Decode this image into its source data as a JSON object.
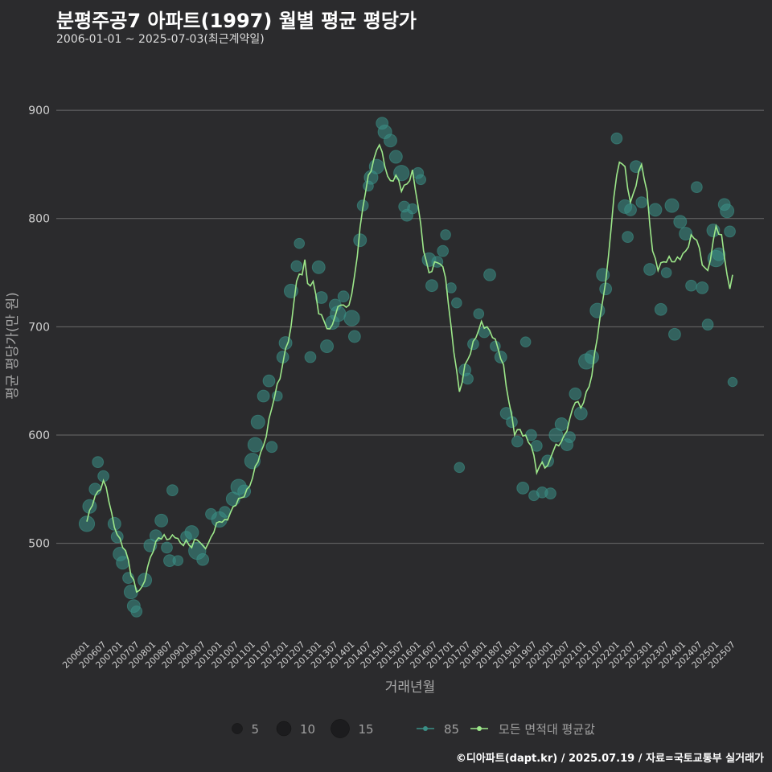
{
  "header": {
    "title": "분평주공7 아파트(1997) 월별 평균 평당가",
    "subtitle": "2006-01-01 ~ 2025-07-03(최근계약일)"
  },
  "footer": {
    "credit": "©디아파트(dapt.kr) / 2025.07.19 / 자료=국토교통부 실거래가"
  },
  "colors": {
    "background": "#2b2b2d",
    "grid": "#6b6b6b",
    "bubble": "#3a8f86",
    "line": "#9de88a",
    "legend_size_bubble": "#1c1c1e"
  },
  "chart_data": {
    "type": "line",
    "title": "분평주공7 아파트(1997) 월별 평균 평당가",
    "xlabel": "거래년월",
    "ylabel": "평균 평당가(만 원)",
    "ylim": [
      415,
      935
    ],
    "yticks": [
      500,
      600,
      700,
      800,
      900
    ],
    "grid": true,
    "x_start": "2006-01",
    "x_end": "2025-07",
    "xtick_labels": [
      "200601",
      "200607",
      "200701",
      "200707",
      "200801",
      "200807",
      "200901",
      "200907",
      "201001",
      "201007",
      "201101",
      "201107",
      "201201",
      "201207",
      "201301",
      "201307",
      "201401",
      "201407",
      "201501",
      "201507",
      "201601",
      "201607",
      "201701",
      "201707",
      "201801",
      "201807",
      "201901",
      "201907",
      "202001",
      "202007",
      "202101",
      "202107",
      "202201",
      "202207",
      "202301",
      "202307",
      "202401",
      "202407",
      "202501",
      "202507"
    ],
    "legend": {
      "size_title": "",
      "sizes": [
        5,
        10,
        15
      ],
      "series_labels": [
        "85",
        "모든 면적대 평균값"
      ]
    },
    "series": [
      {
        "name": "모든 면적대 평균값",
        "type": "line",
        "anchors": [
          [
            "2006-01",
            520
          ],
          [
            "2006-03",
            535
          ],
          [
            "2006-05",
            548
          ],
          [
            "2006-07",
            558
          ],
          [
            "2006-08",
            552
          ],
          [
            "2006-10",
            528
          ],
          [
            "2006-12",
            508
          ],
          [
            "2007-02",
            496
          ],
          [
            "2007-04",
            485
          ],
          [
            "2007-05",
            470
          ],
          [
            "2007-07",
            455
          ],
          [
            "2007-09",
            460
          ],
          [
            "2007-11",
            478
          ],
          [
            "2008-01",
            492
          ],
          [
            "2008-03",
            505
          ],
          [
            "2008-05",
            508
          ],
          [
            "2008-07",
            504
          ],
          [
            "2008-09",
            505
          ],
          [
            "2008-11",
            500
          ],
          [
            "2009-01",
            503
          ],
          [
            "2009-03",
            496
          ],
          [
            "2009-05",
            503
          ],
          [
            "2009-07",
            498
          ],
          [
            "2009-09",
            500
          ],
          [
            "2009-11",
            510
          ],
          [
            "2010-01",
            520
          ],
          [
            "2010-03",
            522
          ],
          [
            "2010-05",
            528
          ],
          [
            "2010-07",
            535
          ],
          [
            "2010-09",
            542
          ],
          [
            "2010-11",
            550
          ],
          [
            "2011-01",
            560
          ],
          [
            "2011-03",
            575
          ],
          [
            "2011-05",
            590
          ],
          [
            "2011-07",
            615
          ],
          [
            "2011-09",
            635
          ],
          [
            "2011-11",
            652
          ],
          [
            "2012-01",
            680
          ],
          [
            "2012-03",
            700
          ],
          [
            "2012-05",
            742
          ],
          [
            "2012-07",
            748
          ],
          [
            "2012-08",
            762
          ],
          [
            "2012-09",
            740
          ],
          [
            "2012-11",
            742
          ],
          [
            "2013-01",
            712
          ],
          [
            "2013-03",
            705
          ],
          [
            "2013-05",
            698
          ],
          [
            "2013-07",
            710
          ],
          [
            "2013-09",
            720
          ],
          [
            "2013-11",
            718
          ],
          [
            "2014-01",
            730
          ],
          [
            "2014-03",
            765
          ],
          [
            "2014-05",
            810
          ],
          [
            "2014-07",
            840
          ],
          [
            "2014-09",
            855
          ],
          [
            "2014-11",
            868
          ],
          [
            "2015-01",
            848
          ],
          [
            "2015-03",
            835
          ],
          [
            "2015-05",
            840
          ],
          [
            "2015-07",
            825
          ],
          [
            "2015-09",
            832
          ],
          [
            "2015-11",
            845
          ],
          [
            "2016-01",
            812
          ],
          [
            "2016-03",
            770
          ],
          [
            "2016-05",
            750
          ],
          [
            "2016-07",
            760
          ],
          [
            "2016-09",
            758
          ],
          [
            "2016-11",
            745
          ],
          [
            "2017-01",
            700
          ],
          [
            "2017-03",
            660
          ],
          [
            "2017-04",
            640
          ],
          [
            "2017-06",
            665
          ],
          [
            "2017-08",
            675
          ],
          [
            "2017-10",
            690
          ],
          [
            "2017-12",
            705
          ],
          [
            "2018-02",
            700
          ],
          [
            "2018-04",
            690
          ],
          [
            "2018-06",
            680
          ],
          [
            "2018-08",
            665
          ],
          [
            "2018-10",
            630
          ],
          [
            "2018-12",
            600
          ],
          [
            "2019-02",
            605
          ],
          [
            "2019-04",
            600
          ],
          [
            "2019-06",
            590
          ],
          [
            "2019-08",
            565
          ],
          [
            "2019-10",
            575
          ],
          [
            "2019-12",
            572
          ],
          [
            "2020-02",
            585
          ],
          [
            "2020-04",
            590
          ],
          [
            "2020-06",
            600
          ],
          [
            "2020-08",
            615
          ],
          [
            "2020-10",
            630
          ],
          [
            "2020-12",
            625
          ],
          [
            "2021-02",
            640
          ],
          [
            "2021-04",
            655
          ],
          [
            "2021-06",
            690
          ],
          [
            "2021-08",
            725
          ],
          [
            "2021-10",
            765
          ],
          [
            "2021-12",
            820
          ],
          [
            "2022-02",
            852
          ],
          [
            "2022-04",
            848
          ],
          [
            "2022-06",
            815
          ],
          [
            "2022-08",
            830
          ],
          [
            "2022-10",
            850
          ],
          [
            "2022-12",
            825
          ],
          [
            "2023-02",
            770
          ],
          [
            "2023-04",
            752
          ],
          [
            "2023-06",
            760
          ],
          [
            "2023-08",
            765
          ],
          [
            "2023-10",
            760
          ],
          [
            "2023-12",
            762
          ],
          [
            "2024-02",
            770
          ],
          [
            "2024-04",
            785
          ],
          [
            "2024-06",
            780
          ],
          [
            "2024-08",
            757
          ],
          [
            "2024-10",
            752
          ],
          [
            "2024-12",
            780
          ],
          [
            "2025-01",
            793
          ],
          [
            "2025-03",
            785
          ],
          [
            "2025-04",
            765
          ],
          [
            "2025-06",
            735
          ],
          [
            "2025-07",
            748
          ]
        ]
      },
      {
        "name": "85",
        "type": "scatter",
        "points": [
          [
            "2006-01",
            518,
            12
          ],
          [
            "2006-02",
            534,
            10
          ],
          [
            "2006-04",
            550,
            8
          ],
          [
            "2006-05",
            575,
            7
          ],
          [
            "2006-07",
            562,
            7
          ],
          [
            "2006-11",
            518,
            9
          ],
          [
            "2006-12",
            506,
            8
          ],
          [
            "2007-01",
            490,
            10
          ],
          [
            "2007-02",
            482,
            9
          ],
          [
            "2007-04",
            468,
            7
          ],
          [
            "2007-05",
            455,
            10
          ],
          [
            "2007-06",
            442,
            9
          ],
          [
            "2007-07",
            437,
            7
          ],
          [
            "2007-10",
            466,
            10
          ],
          [
            "2007-12",
            498,
            9
          ],
          [
            "2008-02",
            507,
            8
          ],
          [
            "2008-04",
            521,
            9
          ],
          [
            "2008-06",
            496,
            7
          ],
          [
            "2008-07",
            484,
            8
          ],
          [
            "2008-08",
            549,
            7
          ],
          [
            "2008-10",
            484,
            6
          ],
          [
            "2009-01",
            506,
            7
          ],
          [
            "2009-03",
            510,
            10
          ],
          [
            "2009-05",
            493,
            14
          ],
          [
            "2009-07",
            485,
            8
          ],
          [
            "2009-10",
            527,
            7
          ],
          [
            "2010-01",
            522,
            12
          ],
          [
            "2010-03",
            529,
            7
          ],
          [
            "2010-06",
            541,
            10
          ],
          [
            "2010-08",
            552,
            12
          ],
          [
            "2010-10",
            548,
            9
          ],
          [
            "2011-01",
            576,
            12
          ],
          [
            "2011-02",
            591,
            11
          ],
          [
            "2011-03",
            612,
            10
          ],
          [
            "2011-05",
            636,
            8
          ],
          [
            "2011-07",
            650,
            8
          ],
          [
            "2011-08",
            589,
            7
          ],
          [
            "2011-10",
            636,
            6
          ],
          [
            "2011-12",
            672,
            8
          ],
          [
            "2012-01",
            685,
            9
          ],
          [
            "2012-03",
            733,
            10
          ],
          [
            "2012-05",
            756,
            7
          ],
          [
            "2012-06",
            777,
            6
          ],
          [
            "2012-10",
            672,
            7
          ],
          [
            "2013-01",
            755,
            9
          ],
          [
            "2013-02",
            727,
            8
          ],
          [
            "2013-04",
            682,
            9
          ],
          [
            "2013-06",
            704,
            10
          ],
          [
            "2013-07",
            720,
            8
          ],
          [
            "2013-08",
            712,
            12
          ],
          [
            "2013-10",
            728,
            7
          ],
          [
            "2014-01",
            708,
            12
          ],
          [
            "2014-02",
            691,
            8
          ],
          [
            "2014-04",
            780,
            9
          ],
          [
            "2014-05",
            812,
            7
          ],
          [
            "2014-07",
            830,
            6
          ],
          [
            "2014-08",
            838,
            10
          ],
          [
            "2014-10",
            848,
            11
          ],
          [
            "2014-12",
            888,
            8
          ],
          [
            "2015-01",
            880,
            10
          ],
          [
            "2015-03",
            872,
            9
          ],
          [
            "2015-05",
            857,
            9
          ],
          [
            "2015-07",
            842,
            12
          ],
          [
            "2015-08",
            811,
            7
          ],
          [
            "2015-09",
            803,
            8
          ],
          [
            "2015-11",
            809,
            6
          ],
          [
            "2016-01",
            842,
            7
          ],
          [
            "2016-02",
            836,
            6
          ],
          [
            "2016-05",
            762,
            10
          ],
          [
            "2016-06",
            738,
            8
          ],
          [
            "2016-08",
            760,
            7
          ],
          [
            "2016-10",
            770,
            7
          ],
          [
            "2016-11",
            785,
            6
          ],
          [
            "2017-01",
            736,
            6
          ],
          [
            "2017-03",
            722,
            6
          ],
          [
            "2017-04",
            570,
            6
          ],
          [
            "2017-06",
            660,
            8
          ],
          [
            "2017-07",
            652,
            7
          ],
          [
            "2017-09",
            684,
            7
          ],
          [
            "2017-11",
            712,
            6
          ],
          [
            "2018-01",
            695,
            7
          ],
          [
            "2018-03",
            748,
            8
          ],
          [
            "2018-05",
            682,
            6
          ],
          [
            "2018-07",
            672,
            8
          ],
          [
            "2018-09",
            620,
            8
          ],
          [
            "2018-11",
            612,
            7
          ],
          [
            "2019-01",
            594,
            7
          ],
          [
            "2019-03",
            551,
            8
          ],
          [
            "2019-04",
            686,
            6
          ],
          [
            "2019-06",
            600,
            7
          ],
          [
            "2019-07",
            544,
            6
          ],
          [
            "2019-08",
            590,
            7
          ],
          [
            "2019-10",
            547,
            7
          ],
          [
            "2019-12",
            576,
            8
          ],
          [
            "2020-01",
            546,
            7
          ],
          [
            "2020-03",
            600,
            10
          ],
          [
            "2020-05",
            610,
            9
          ],
          [
            "2020-07",
            591,
            8
          ],
          [
            "2020-08",
            598,
            7
          ],
          [
            "2020-10",
            638,
            8
          ],
          [
            "2020-12",
            620,
            9
          ],
          [
            "2021-02",
            668,
            12
          ],
          [
            "2021-04",
            672,
            10
          ],
          [
            "2021-06",
            715,
            11
          ],
          [
            "2021-08",
            748,
            9
          ],
          [
            "2021-09",
            735,
            8
          ],
          [
            "2022-01",
            874,
            7
          ],
          [
            "2022-04",
            811,
            10
          ],
          [
            "2022-05",
            783,
            7
          ],
          [
            "2022-06",
            808,
            8
          ],
          [
            "2022-08",
            848,
            8
          ],
          [
            "2022-10",
            815,
            7
          ],
          [
            "2023-01",
            753,
            8
          ],
          [
            "2023-03",
            808,
            9
          ],
          [
            "2023-05",
            716,
            8
          ],
          [
            "2023-07",
            750,
            6
          ],
          [
            "2023-09",
            812,
            10
          ],
          [
            "2023-10",
            693,
            8
          ],
          [
            "2023-12",
            797,
            9
          ],
          [
            "2024-02",
            786,
            9
          ],
          [
            "2024-04",
            738,
            7
          ],
          [
            "2024-06",
            829,
            7
          ],
          [
            "2024-08",
            736,
            8
          ],
          [
            "2024-10",
            702,
            7
          ],
          [
            "2024-12",
            789,
            9
          ],
          [
            "2025-01",
            763,
            13
          ],
          [
            "2025-02",
            767,
            9
          ],
          [
            "2025-04",
            813,
            8
          ],
          [
            "2025-05",
            807,
            10
          ],
          [
            "2025-06",
            788,
            7
          ],
          [
            "2025-07",
            649,
            5
          ]
        ]
      }
    ]
  }
}
